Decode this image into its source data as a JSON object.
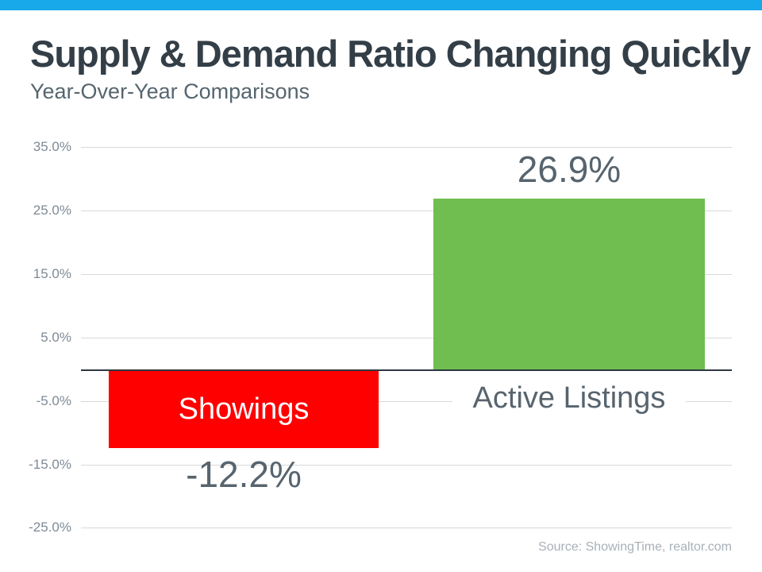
{
  "header": {
    "title": "Supply & Demand Ratio Changing Quickly",
    "subtitle": "Year-Over-Year Comparisons"
  },
  "chart_data": {
    "type": "bar",
    "title": "Supply & Demand Ratio Changing Quickly",
    "subtitle": "Year-Over-Year Comparisons",
    "categories": [
      "Showings",
      "Active Listings"
    ],
    "values": [
      -12.2,
      26.9
    ],
    "value_labels": [
      "-12.2%",
      "26.9%"
    ],
    "bar_colors": [
      "#fe0000",
      "#6fbe4f"
    ],
    "xlabel": "",
    "ylabel": "",
    "ylim": [
      -25,
      35
    ],
    "yticks": [
      "35.0%",
      "25.0%",
      "15.0%",
      "5.0%",
      "-5.0%",
      "-15.0%",
      "-25.0%"
    ],
    "grid": true,
    "legend": false,
    "label_placement": {
      "Showings": "inside-bar-white-text",
      "Active Listings": "below-axis-on-white-box"
    }
  },
  "source": {
    "text": "Source: ShowingTime,  realtor.com"
  },
  "colors": {
    "accent": "#17a9ea",
    "title": "#333e47",
    "subtitle": "#56666f",
    "yticks": "#7e8a96",
    "grid": "#d9d9d9",
    "axis": "#2d3842",
    "bar_negative": "#fe0000",
    "bar_positive": "#6fbe4f",
    "datalabel": "#57646e",
    "source": "#a9b0b8"
  }
}
